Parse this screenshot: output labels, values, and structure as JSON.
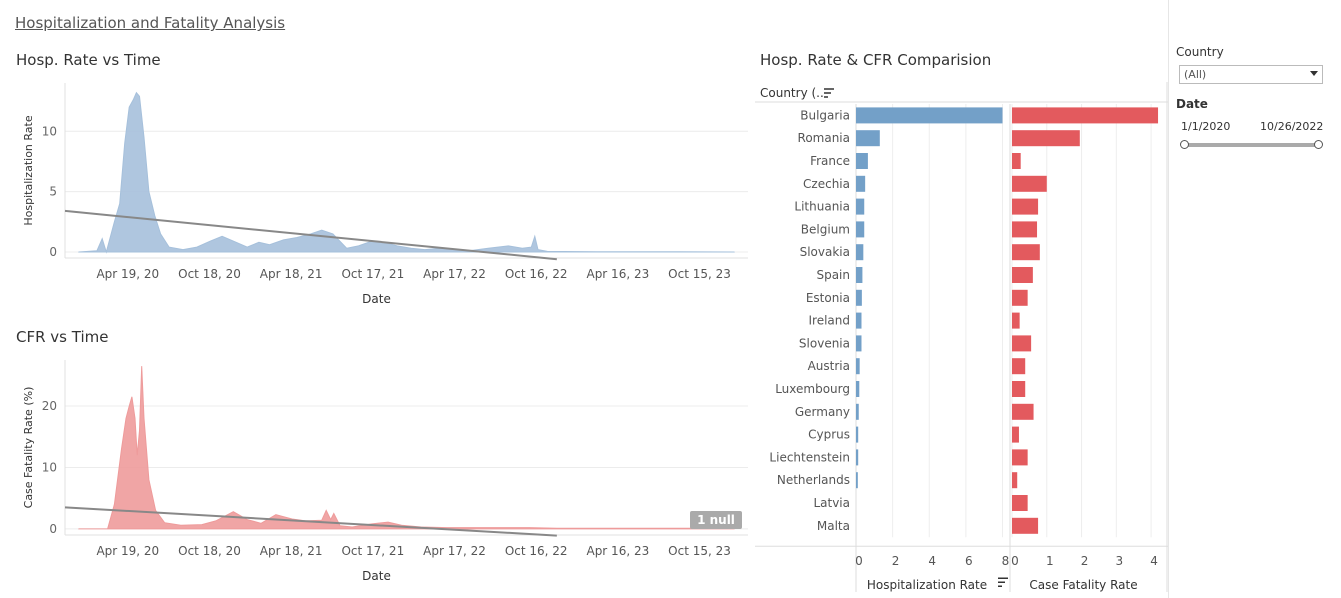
{
  "dashboard": {
    "title": "Hospitalization and Fatality Analysis"
  },
  "filters": {
    "country_label": "Country",
    "country_value": "(All)",
    "date_label": "Date",
    "date_start": "1/1/2020",
    "date_end": "10/26/2022"
  },
  "null_badge": "1 null",
  "chart_data": [
    {
      "type": "area",
      "title": "Hosp. Rate vs Time",
      "xlabel": "Date",
      "ylabel": "Hospitalization Rate",
      "x_ticks": [
        "Apr 19, 20",
        "Oct 18, 20",
        "Apr 18, 21",
        "Oct 17, 21",
        "Apr 17, 22",
        "Oct 16, 22",
        "Apr 16, 23",
        "Oct 15, 23"
      ],
      "y_ticks": [
        0,
        5,
        10
      ],
      "ylim": [
        -0.5,
        14
      ],
      "xlim": [
        "2019-12-01",
        "2024-01-31"
      ],
      "color": "#a6c0db",
      "trend_color": "#888888",
      "trend": [
        {
          "x": "2019-12-01",
          "y": 3.4
        },
        {
          "x": "2022-12-01",
          "y": -0.6
        }
      ],
      "series": [
        {
          "x": "2020-01-01",
          "y": 0
        },
        {
          "x": "2020-02-10",
          "y": 0.1
        },
        {
          "x": "2020-02-22",
          "y": 1.1
        },
        {
          "x": "2020-03-02",
          "y": 0
        },
        {
          "x": "2020-03-20",
          "y": 2.5
        },
        {
          "x": "2020-04-01",
          "y": 4
        },
        {
          "x": "2020-04-12",
          "y": 9
        },
        {
          "x": "2020-04-22",
          "y": 12
        },
        {
          "x": "2020-05-01",
          "y": 12.6
        },
        {
          "x": "2020-05-08",
          "y": 13.2
        },
        {
          "x": "2020-05-15",
          "y": 12.9
        },
        {
          "x": "2020-05-25",
          "y": 9.5
        },
        {
          "x": "2020-06-05",
          "y": 5
        },
        {
          "x": "2020-06-18",
          "y": 3
        },
        {
          "x": "2020-07-01",
          "y": 1.5
        },
        {
          "x": "2020-07-20",
          "y": 0.4
        },
        {
          "x": "2020-08-20",
          "y": 0.2
        },
        {
          "x": "2020-09-20",
          "y": 0.4
        },
        {
          "x": "2020-10-20",
          "y": 0.9
        },
        {
          "x": "2020-11-15",
          "y": 1.3
        },
        {
          "x": "2020-12-10",
          "y": 0.9
        },
        {
          "x": "2021-01-10",
          "y": 0.4
        },
        {
          "x": "2021-02-05",
          "y": 0.8
        },
        {
          "x": "2021-03-01",
          "y": 0.6
        },
        {
          "x": "2021-04-01",
          "y": 1.0
        },
        {
          "x": "2021-05-01",
          "y": 1.2
        },
        {
          "x": "2021-06-01",
          "y": 1.5
        },
        {
          "x": "2021-06-25",
          "y": 1.8
        },
        {
          "x": "2021-07-20",
          "y": 1.5
        },
        {
          "x": "2021-08-20",
          "y": 0.3
        },
        {
          "x": "2021-09-15",
          "y": 0.5
        },
        {
          "x": "2021-10-15",
          "y": 0.9
        },
        {
          "x": "2021-11-10",
          "y": 0.8
        },
        {
          "x": "2021-12-10",
          "y": 0.5
        },
        {
          "x": "2022-01-10",
          "y": 0.3
        },
        {
          "x": "2022-02-10",
          "y": 0.2
        },
        {
          "x": "2022-03-15",
          "y": 0.3
        },
        {
          "x": "2022-04-20",
          "y": 0.2
        },
        {
          "x": "2022-05-20",
          "y": 0.1
        },
        {
          "x": "2022-07-01",
          "y": 0.3
        },
        {
          "x": "2022-08-15",
          "y": 0.5
        },
        {
          "x": "2022-09-15",
          "y": 0.3
        },
        {
          "x": "2022-10-05",
          "y": 0.4
        },
        {
          "x": "2022-10-13",
          "y": 1.3
        },
        {
          "x": "2022-10-20",
          "y": 0.2
        },
        {
          "x": "2022-11-10",
          "y": 0.05
        },
        {
          "x": "2023-03-01",
          "y": 0.02
        },
        {
          "x": "2023-09-01",
          "y": 0.02
        },
        {
          "x": "2023-12-31",
          "y": 0
        }
      ]
    },
    {
      "type": "area",
      "title": "CFR vs Time",
      "xlabel": "Date",
      "ylabel": "Case Fatality Rate (%)",
      "x_ticks": [
        "Apr 19, 20",
        "Oct 18, 20",
        "Apr 18, 21",
        "Oct 17, 21",
        "Apr 17, 22",
        "Oct 16, 22",
        "Apr 16, 23",
        "Oct 15, 23"
      ],
      "y_ticks": [
        0,
        10,
        20
      ],
      "ylim": [
        -1,
        27.5
      ],
      "xlim": [
        "2019-12-01",
        "2024-01-31"
      ],
      "color": "#ee9b9b",
      "trend_color": "#888888",
      "trend": [
        {
          "x": "2019-12-01",
          "y": 3.5
        },
        {
          "x": "2022-12-01",
          "y": -1.1
        }
      ],
      "series": [
        {
          "x": "2020-01-01",
          "y": 0
        },
        {
          "x": "2020-03-05",
          "y": 0
        },
        {
          "x": "2020-03-20",
          "y": 4
        },
        {
          "x": "2020-04-05",
          "y": 13
        },
        {
          "x": "2020-04-15",
          "y": 18
        },
        {
          "x": "2020-04-22",
          "y": 20
        },
        {
          "x": "2020-04-28",
          "y": 21.5
        },
        {
          "x": "2020-05-05",
          "y": 18
        },
        {
          "x": "2020-05-10",
          "y": 12
        },
        {
          "x": "2020-05-15",
          "y": 16
        },
        {
          "x": "2020-05-20",
          "y": 26.5
        },
        {
          "x": "2020-05-25",
          "y": 18
        },
        {
          "x": "2020-06-05",
          "y": 8
        },
        {
          "x": "2020-06-20",
          "y": 3
        },
        {
          "x": "2020-07-10",
          "y": 1
        },
        {
          "x": "2020-08-15",
          "y": 0.6
        },
        {
          "x": "2020-10-01",
          "y": 0.7
        },
        {
          "x": "2020-11-01",
          "y": 1.3
        },
        {
          "x": "2020-12-10",
          "y": 2.8
        },
        {
          "x": "2021-01-10",
          "y": 1.5
        },
        {
          "x": "2021-02-10",
          "y": 0.9
        },
        {
          "x": "2021-03-15",
          "y": 2.3
        },
        {
          "x": "2021-04-20",
          "y": 1.6
        },
        {
          "x": "2021-05-20",
          "y": 1.3
        },
        {
          "x": "2021-06-25",
          "y": 1.4
        },
        {
          "x": "2021-07-05",
          "y": 3
        },
        {
          "x": "2021-07-15",
          "y": 1.5
        },
        {
          "x": "2021-07-22",
          "y": 2.5
        },
        {
          "x": "2021-08-05",
          "y": 0.5
        },
        {
          "x": "2021-09-01",
          "y": 0.3
        },
        {
          "x": "2021-10-15",
          "y": 0.8
        },
        {
          "x": "2021-11-20",
          "y": 1.1
        },
        {
          "x": "2021-12-20",
          "y": 0.6
        },
        {
          "x": "2022-02-01",
          "y": 0.3
        },
        {
          "x": "2022-04-01",
          "y": 0.2
        },
        {
          "x": "2022-06-01",
          "y": 0.2
        },
        {
          "x": "2022-08-01",
          "y": 0.2
        },
        {
          "x": "2022-10-01",
          "y": 0.2
        },
        {
          "x": "2022-12-01",
          "y": 0.1
        },
        {
          "x": "2023-06-01",
          "y": 0.1
        },
        {
          "x": "2023-12-31",
          "y": 0.1
        }
      ]
    },
    {
      "type": "bar",
      "title": "Hosp. Rate & CFR Comparision",
      "row_header": "Country (..",
      "categories": [
        "Bulgaria",
        "Romania",
        "France",
        "Czechia",
        "Lithuania",
        "Belgium",
        "Slovakia",
        "Spain",
        "Estonia",
        "Ireland",
        "Slovenia",
        "Austria",
        "Luxembourg",
        "Germany",
        "Cyprus",
        "Liechtenstein",
        "Netherlands",
        "Latvia",
        "Malta"
      ],
      "series": [
        {
          "name": "Hospitalization Rate",
          "color": "#73a0c8",
          "xlim": [
            0,
            8.3
          ],
          "ticks": [
            0,
            2,
            4,
            6,
            8
          ],
          "values": [
            8.0,
            1.3,
            0.65,
            0.5,
            0.45,
            0.45,
            0.4,
            0.35,
            0.32,
            0.3,
            0.3,
            0.2,
            0.18,
            0.15,
            0.12,
            0.12,
            0.1,
            0,
            0
          ]
        },
        {
          "name": "Case Fatality Rate",
          "color": "#e35a5e",
          "xlim": [
            0,
            4.4
          ],
          "ticks": [
            0,
            1,
            2,
            3,
            4
          ],
          "values": [
            4.2,
            1.95,
            0.25,
            1.0,
            0.75,
            0.72,
            0.8,
            0.6,
            0.45,
            0.22,
            0.55,
            0.38,
            0.38,
            0.62,
            0.2,
            0.45,
            0.15,
            0.45,
            0.75
          ]
        }
      ]
    }
  ]
}
